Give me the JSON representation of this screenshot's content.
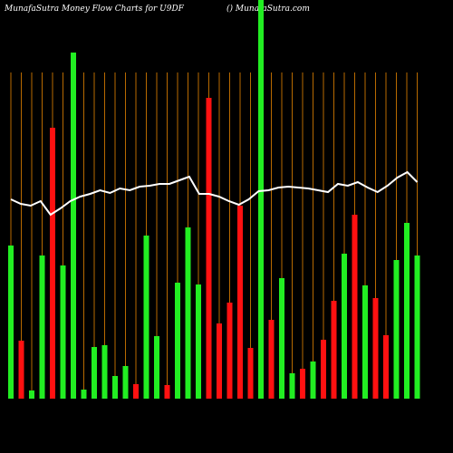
{
  "header": {
    "title": "MunafaSutra  Money Flow  Charts for U9DF",
    "site": "() MunafaSutra.com"
  },
  "chart_data": {
    "type": "bar",
    "ylim": [
      0,
      440
    ],
    "values": [
      169,
      64,
      9,
      158,
      299,
      147,
      382,
      10,
      57,
      59,
      25,
      36,
      16,
      180,
      69,
      15,
      128,
      189,
      126,
      332,
      83,
      106,
      213,
      56,
      440,
      87,
      133,
      28,
      33,
      41,
      65,
      108,
      160,
      203,
      125,
      111,
      70,
      153,
      194,
      158
    ],
    "colors": [
      "#22ee22",
      "#ff1111",
      "#22ee22",
      "#22ee22",
      "#ff1111",
      "#22ee22",
      "#22ee22",
      "#22ee22",
      "#22ee22",
      "#22ee22",
      "#22ee22",
      "#22ee22",
      "#ff1111",
      "#22ee22",
      "#22ee22",
      "#ff1111",
      "#22ee22",
      "#22ee22",
      "#22ee22",
      "#ff1111",
      "#ff1111",
      "#ff1111",
      "#ff1111",
      "#ff1111",
      "#22ee22",
      "#ff1111",
      "#22ee22",
      "#22ee22",
      "#ff1111",
      "#22ee22",
      "#ff1111",
      "#ff1111",
      "#22ee22",
      "#ff1111",
      "#22ee22",
      "#ff1111",
      "#ff1111",
      "#22ee22",
      "#22ee22",
      "#22ee22"
    ],
    "line": [
      220,
      215,
      213,
      218,
      203,
      210,
      218,
      223,
      226,
      230,
      227,
      232,
      230,
      234,
      235,
      237,
      237,
      241,
      245,
      226,
      226,
      223,
      218,
      214,
      220,
      229,
      230,
      233,
      234,
      233,
      232,
      230,
      228,
      237,
      235,
      239,
      233,
      228,
      235,
      244,
      250,
      239
    ]
  }
}
